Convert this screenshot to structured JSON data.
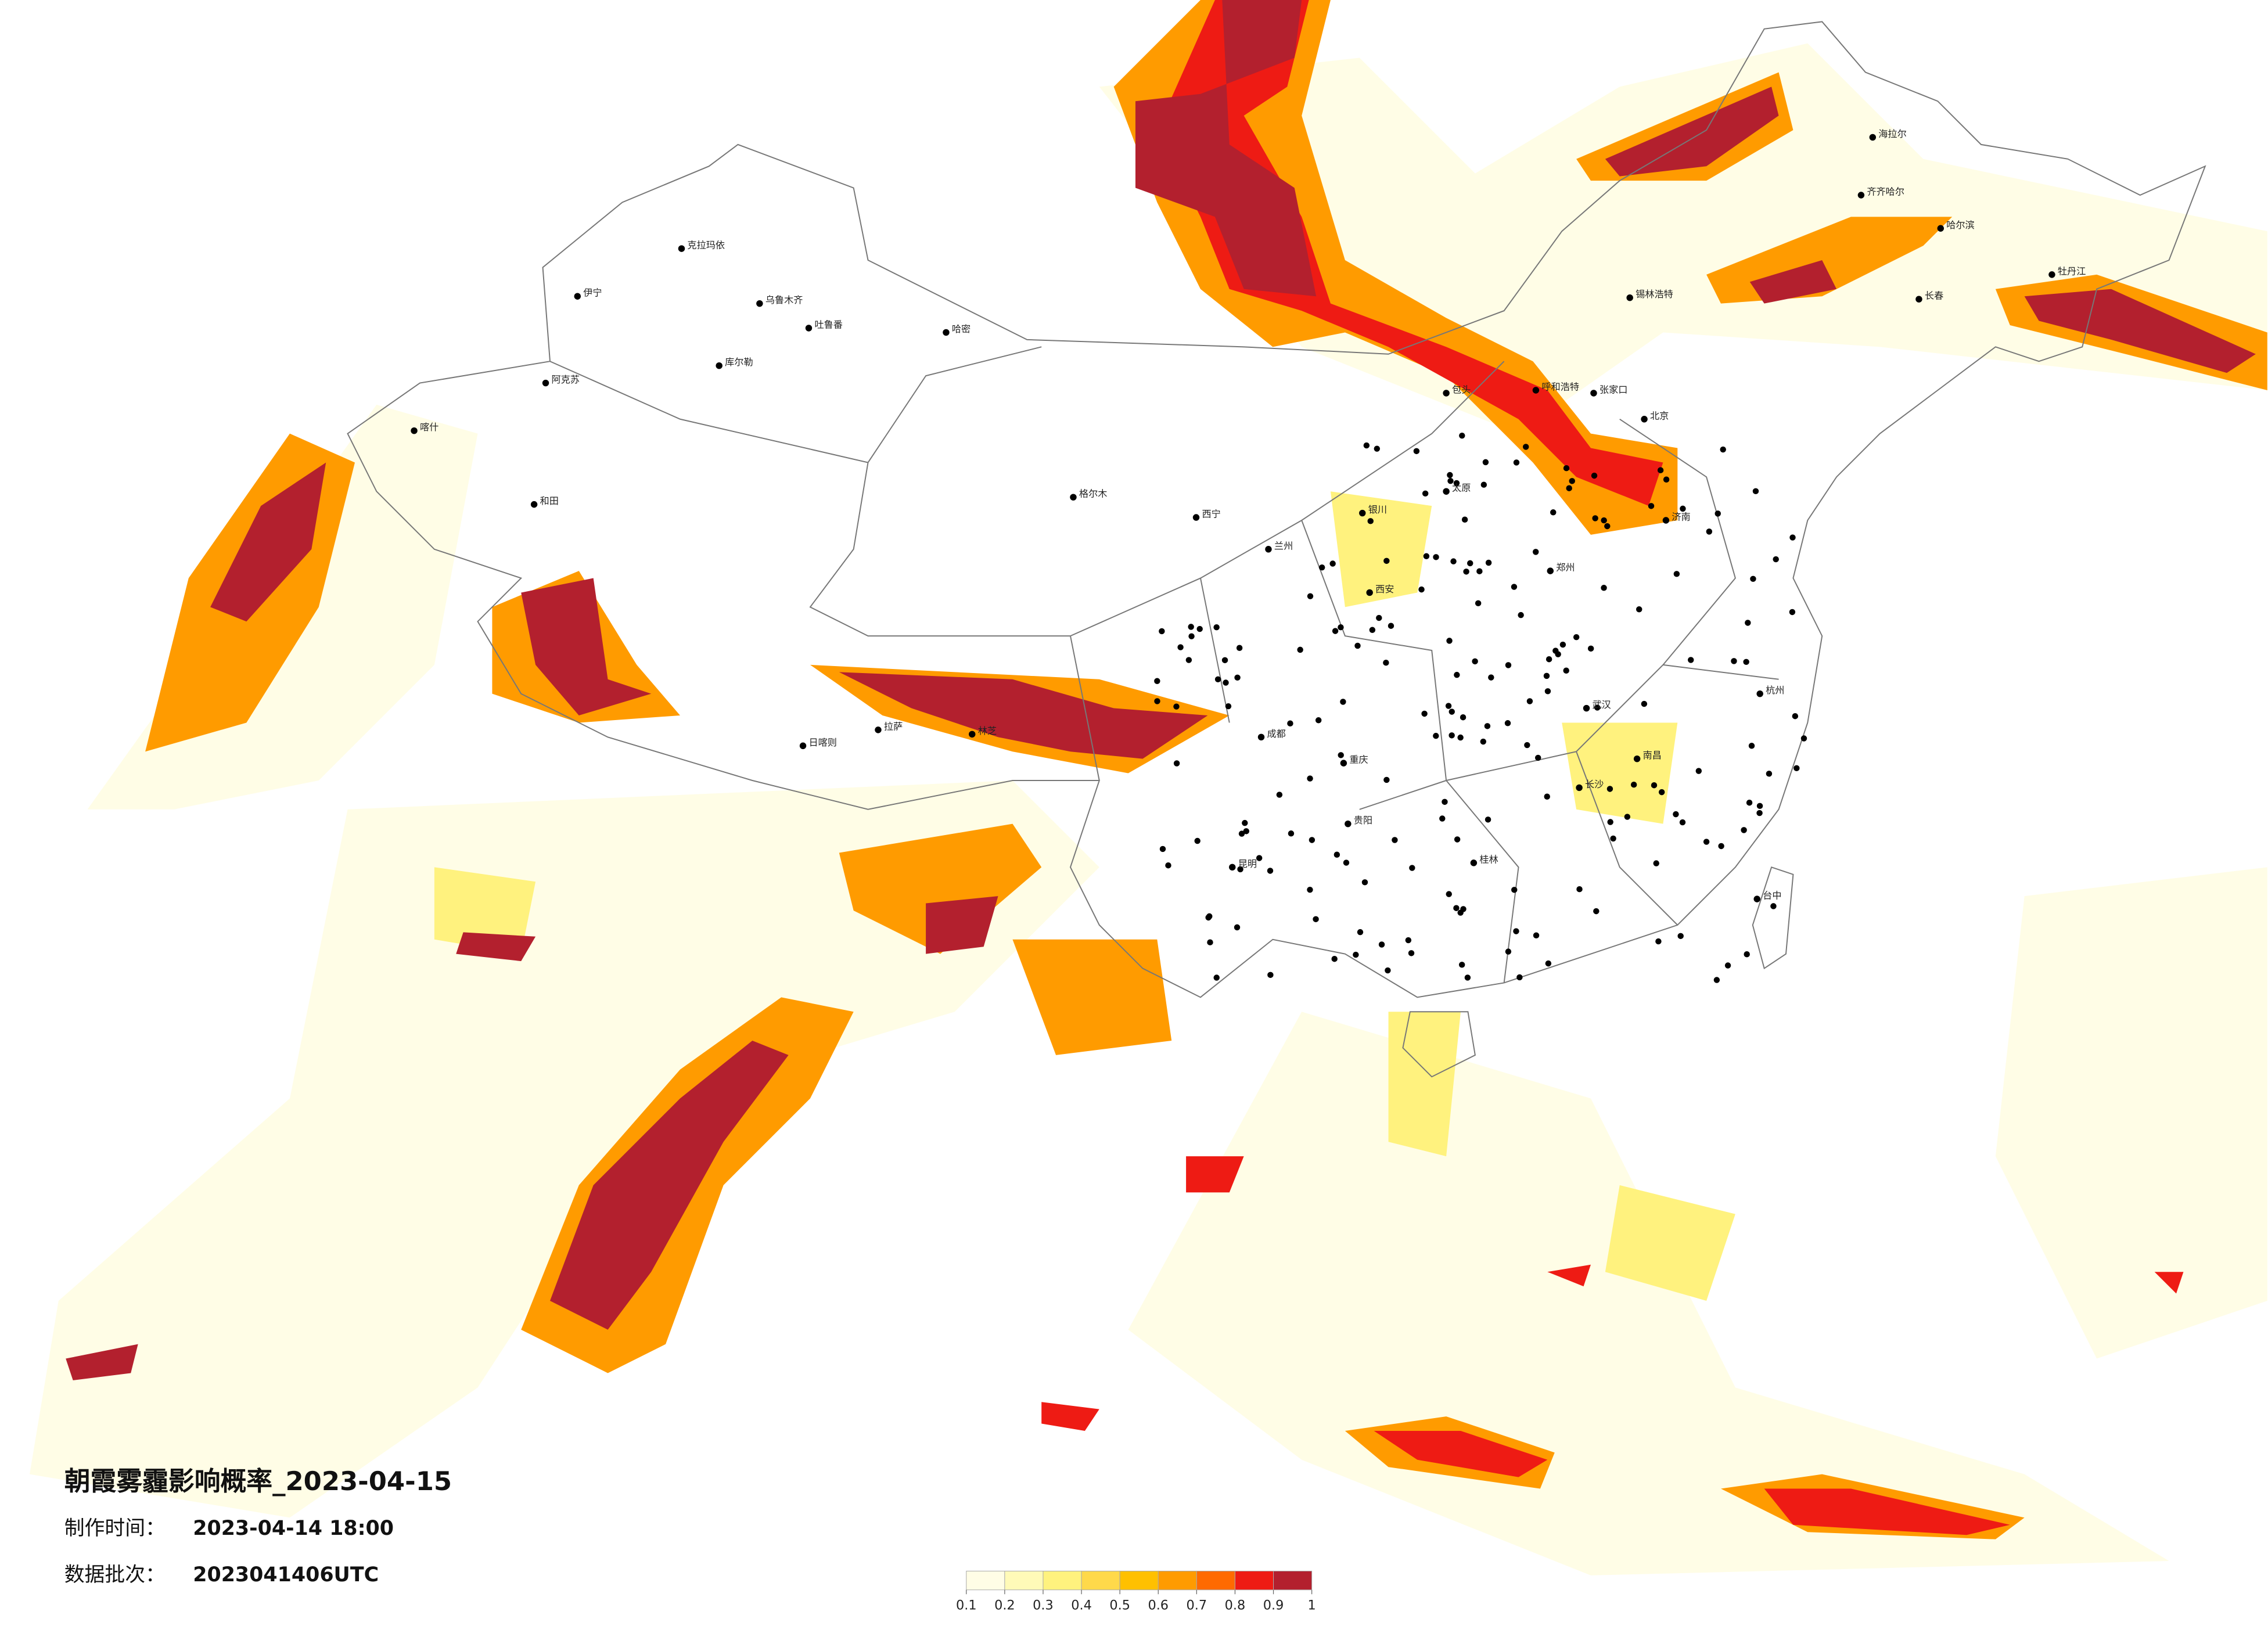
{
  "map": {
    "title": "朝霞雾霾影响概率_2023-04-15",
    "issue_label": "制作时间：",
    "issue_time": "2023-04-14 18:00",
    "batch_label": "数据批次：",
    "batch": "2023041406UTC",
    "colorbar": {
      "ticks": [
        0.1,
        0.2,
        0.3,
        0.4,
        0.5,
        0.6,
        0.7,
        0.8,
        0.9,
        1
      ],
      "colors": [
        "#fffde6",
        "#fffab8",
        "#fff27e",
        "#ffd94a",
        "#ffc000",
        "#ff9b00",
        "#ff6a00",
        "#ee1b14",
        "#b3202e"
      ]
    },
    "cities": [
      "克拉玛依",
      "乌鲁木齐",
      "伊宁",
      "吐鲁番",
      "哈密",
      "阿克苏",
      "库尔勒",
      "和田",
      "喀什",
      "格尔木",
      "西宁",
      "拉萨",
      "日喀则",
      "林芝",
      "呼和浩特",
      "包头",
      "北京",
      "张家口",
      "海拉尔",
      "齐齐哈尔",
      "哈尔滨",
      "长春",
      "牡丹江",
      "锡林浩特",
      "成都",
      "重庆",
      "昆明",
      "贵阳",
      "武汉",
      "南昌",
      "长沙",
      "桂林",
      "台中",
      "杭州",
      "西安",
      "银川",
      "兰州",
      "太原",
      "郑州",
      "济南"
    ]
  }
}
